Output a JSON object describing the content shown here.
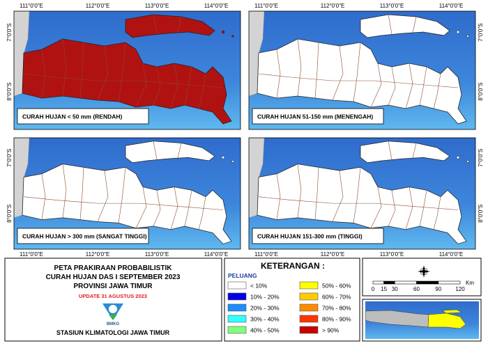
{
  "panels": [
    {
      "label": "CURAH HUJAN < 50 mm (RENDAH)",
      "fill": "#b01212"
    },
    {
      "label": "CURAH HUJAN 51-150 mm (MENENGAH)",
      "fill": "#ffffff"
    },
    {
      "label": "CURAH HUJAN > 300 mm (SANGAT TINGGI)",
      "fill": "#ffffff"
    },
    {
      "label": "CURAH HUJAN 151-300 mm (TINGGI)",
      "fill": "#ffffff"
    }
  ],
  "lon_labels": [
    "111°0'0\"E",
    "112°0'0\"E",
    "113°0'0\"E",
    "114°0'0\"E"
  ],
  "lat_labels": [
    "7°0'0\"S",
    "8°0'0\"S"
  ],
  "title_block": {
    "lines": [
      "PETA PRAKIRAAN PROBABILISTIK",
      "CURAH HUJAN DAS I SEPTEMBER 2023",
      "PROVINSI JAWA TIMUR"
    ],
    "update": "UPDATE 31 AGUSTUS 2023",
    "logo_text": "BMKG",
    "station": "STASIUN KLIMATOLOGI JAWA TIMUR"
  },
  "legend": {
    "title": "KETERANGAN :",
    "subtitle": "PELUANG",
    "items": [
      {
        "label": "< 10%",
        "color": "#ffffff"
      },
      {
        "label": "10% - 20%",
        "color": "#0000e6"
      },
      {
        "label": "20% - 30%",
        "color": "#1e8cff"
      },
      {
        "label": "30% - 40%",
        "color": "#33ffff"
      },
      {
        "label": "40% - 50%",
        "color": "#80ff80"
      },
      {
        "label": "50% - 60%",
        "color": "#ffff00"
      },
      {
        "label": "60% - 70%",
        "color": "#ffcc00"
      },
      {
        "label": "70% - 80%",
        "color": "#ff8c00"
      },
      {
        "label": "80% - 90%",
        "color": "#ff3300"
      },
      {
        "label": "> 90%",
        "color": "#c80000"
      }
    ]
  },
  "scale": {
    "ticks": [
      0,
      15,
      30,
      60,
      90,
      120
    ],
    "unit": "Km"
  }
}
